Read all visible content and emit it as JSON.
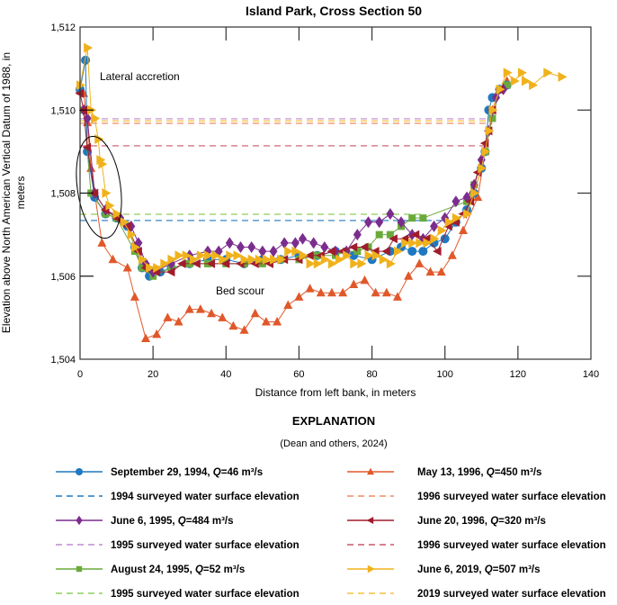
{
  "chart_data": {
    "type": "line",
    "title": "Island Park, Cross Section 50",
    "xlabel": "Distance from left bank, in meters",
    "ylabel": [
      "Elevation above North American Vertical Datum of 1988, in",
      "meters"
    ],
    "xlim": [
      0,
      140
    ],
    "ylim": [
      1504,
      1512
    ],
    "xticks": [
      0,
      20,
      40,
      60,
      80,
      100,
      120,
      140
    ],
    "yticks": [
      1504,
      1506,
      1508,
      1510,
      1512
    ],
    "ytick_labels": [
      "1,504",
      "1,506",
      "1,508",
      "1,510",
      "1,512"
    ],
    "grid": false,
    "annotations": [
      {
        "text": "Lateral accretion",
        "x": 5,
        "y": 1511.0
      },
      {
        "text": "Bed scour",
        "x": 37,
        "y": 1505.7
      }
    ],
    "legend": {
      "title": "EXPLANATION",
      "subtitle": "(Dean and others, 2024)",
      "placement": "bottom"
    },
    "series": [
      {
        "name": "September 29, 1994, Q=46 m³/s",
        "date": "September 29, 1994, ",
        "q": "Q",
        "qval": "=46 m³/s",
        "color": "#1f78c1",
        "marker": "circle",
        "x": [
          0,
          1.5,
          2,
          4,
          7,
          10,
          13,
          15,
          17,
          19,
          22,
          25,
          30,
          35,
          40,
          45,
          50,
          55,
          60,
          65,
          70,
          75,
          80,
          85,
          88,
          91,
          94,
          97,
          100,
          103,
          106,
          108,
          110,
          111,
          112,
          113,
          115,
          117
        ],
        "y": [
          1510.5,
          1511.2,
          1509.0,
          1507.9,
          1507.5,
          1507.4,
          1507.2,
          1506.7,
          1506.2,
          1506.0,
          1506.1,
          1506.2,
          1506.3,
          1506.4,
          1506.4,
          1506.3,
          1506.4,
          1506.4,
          1506.5,
          1506.5,
          1506.6,
          1506.5,
          1506.4,
          1506.6,
          1506.7,
          1506.6,
          1506.6,
          1506.8,
          1506.9,
          1507.3,
          1507.6,
          1508.0,
          1508.6,
          1509.0,
          1510.0,
          1510.3,
          1510.5,
          1510.6
        ]
      },
      {
        "name": "1994 surveyed water surface elevation",
        "color": "#1f78c1",
        "dashed": true,
        "x": [
          0,
          100.5
        ],
        "y": [
          1507.34,
          1507.34
        ]
      },
      {
        "name": "June 6, 1995, Q=484 m³/s",
        "date": "June 6, 1995, ",
        "q": "Q",
        "qval": "=484 m³/s",
        "color": "#7b2d8e",
        "marker": "diamond",
        "x": [
          1,
          2,
          4,
          7,
          11,
          14,
          16,
          18,
          20,
          25,
          30,
          35,
          38,
          41,
          44,
          47,
          50,
          53,
          56,
          59,
          61,
          64,
          67,
          70,
          73,
          76,
          79,
          82,
          85,
          88,
          91,
          94,
          97,
          100,
          103,
          106,
          108,
          110,
          112,
          114,
          116
        ],
        "y": [
          1510.0,
          1509.8,
          1508.0,
          1507.6,
          1507.4,
          1507.2,
          1506.8,
          1506.3,
          1506.1,
          1506.3,
          1506.5,
          1506.6,
          1506.6,
          1506.8,
          1506.7,
          1506.7,
          1506.6,
          1506.6,
          1506.8,
          1506.8,
          1506.9,
          1506.8,
          1506.7,
          1506.6,
          1506.6,
          1507.0,
          1507.3,
          1507.3,
          1507.5,
          1507.3,
          1507.0,
          1506.9,
          1507.2,
          1507.4,
          1507.8,
          1507.9,
          1508.2,
          1508.8,
          1509.5,
          1510.3,
          1510.5
        ]
      },
      {
        "name": "1995 surveyed water surface elevation",
        "color": "#c08ad0",
        "dashed": true,
        "x": [
          0,
          113
        ],
        "y": [
          1509.79,
          1509.79
        ]
      },
      {
        "name": "August 24, 1995, Q=52 m³/s",
        "date": "August 24, 1995, ",
        "q": "Q",
        "qval": "=52 m³/s",
        "color": "#6aaa3a",
        "marker": "square",
        "x": [
          1,
          3,
          7,
          10,
          15,
          17,
          20,
          25,
          30,
          35,
          40,
          45,
          50,
          55,
          60,
          65,
          70,
          73,
          76,
          79,
          82,
          85,
          88,
          91,
          94,
          106,
          108,
          111,
          113,
          115,
          117
        ],
        "y": [
          1510.0,
          1508.0,
          1507.5,
          1507.4,
          1506.6,
          1506.2,
          1506.0,
          1506.2,
          1506.3,
          1506.3,
          1506.3,
          1506.3,
          1506.3,
          1506.4,
          1506.4,
          1506.5,
          1506.5,
          1506.6,
          1506.6,
          1506.7,
          1507.0,
          1507.0,
          1507.2,
          1507.4,
          1507.4,
          1507.8,
          1508.2,
          1509.0,
          1509.8,
          1510.5,
          1510.6
        ]
      },
      {
        "name": "1995 surveyed water surface elevation",
        "color": "#8fcf5a",
        "dashed": true,
        "x": [
          0,
          94.7
        ],
        "y": [
          1507.49,
          1507.49
        ]
      },
      {
        "name": "May 13, 1996, Q=450 m³/s",
        "date": "May 13, 1996, ",
        "q": "Q",
        "qval": "=450 m³/s",
        "color": "#e0582a",
        "marker": "triangle-up",
        "x": [
          0,
          1,
          2,
          3,
          6,
          9,
          13,
          15,
          18,
          21,
          24,
          27,
          30,
          33,
          36,
          39,
          42,
          45,
          48,
          51,
          54,
          57,
          60,
          63,
          66,
          69,
          72,
          75,
          78,
          81,
          84,
          87,
          90,
          93,
          96,
          99,
          102,
          105,
          109,
          111,
          113,
          115,
          117
        ],
        "y": [
          1510.5,
          1510.4,
          1509.7,
          1508.6,
          1506.8,
          1506.4,
          1506.2,
          1505.5,
          1504.5,
          1504.6,
          1505.0,
          1504.9,
          1505.2,
          1505.2,
          1505.1,
          1505.0,
          1504.8,
          1504.7,
          1505.1,
          1504.9,
          1504.9,
          1505.3,
          1505.5,
          1505.7,
          1505.6,
          1505.6,
          1505.6,
          1505.8,
          1505.9,
          1505.6,
          1505.6,
          1505.5,
          1506.0,
          1506.3,
          1506.1,
          1506.1,
          1506.5,
          1507.1,
          1507.9,
          1509.0,
          1510.0,
          1510.5,
          1510.7
        ]
      },
      {
        "name": "1996 surveyed water surface elevation",
        "color": "#f08a60",
        "dashed": true,
        "x": [
          0,
          113
        ],
        "y": [
          1509.68,
          1509.68
        ]
      },
      {
        "name": "June 20, 1996, Q=320 m³/s",
        "date": "June 20, 1996, ",
        "q": "Q",
        "qval": "=320 m³/s",
        "color": "#a01c2c",
        "marker": "triangle-left",
        "x": [
          0,
          1,
          2,
          4,
          7,
          10,
          13,
          16,
          18,
          21,
          25,
          28,
          32,
          36,
          40,
          44,
          48,
          52,
          56,
          60,
          63,
          66,
          69,
          72,
          75,
          78,
          81,
          84,
          86,
          89,
          92,
          95,
          98,
          101,
          103,
          105,
          107,
          109,
          111,
          112,
          113,
          115
        ],
        "y": [
          1510.4,
          1510.0,
          1509.1,
          1508.0,
          1507.6,
          1507.4,
          1507.2,
          1506.6,
          1506.2,
          1506.1,
          1506.1,
          1506.3,
          1506.3,
          1506.3,
          1506.3,
          1506.3,
          1506.3,
          1506.3,
          1506.4,
          1506.4,
          1506.5,
          1506.5,
          1506.6,
          1506.6,
          1506.7,
          1506.7,
          1506.6,
          1506.6,
          1506.9,
          1506.9,
          1507.0,
          1506.9,
          1506.6,
          1507.2,
          1507.3,
          1507.5,
          1507.8,
          1508.5,
          1509.2,
          1509.5,
          1510.0,
          1510.5
        ]
      },
      {
        "name": "1996 surveyed water surface elevation",
        "color": "#c9566a",
        "dashed": true,
        "x": [
          0,
          112
        ],
        "y": [
          1509.14,
          1509.14
        ]
      },
      {
        "name": "June 6, 2019, Q=507 m³/s",
        "date": "June 6, 2019, ",
        "q": "Q",
        "qval": "=507 m³/s",
        "color": "#f0b21c",
        "marker": "triangle-right",
        "x": [
          0,
          2,
          3,
          4,
          5,
          5.5,
          6,
          7,
          8,
          10,
          12,
          14,
          15,
          17,
          19,
          21,
          23,
          25,
          27,
          29,
          31,
          33,
          35,
          37,
          39,
          41,
          43,
          45,
          47,
          49,
          51,
          53,
          55,
          57,
          59,
          61,
          63,
          65,
          67,
          69,
          71,
          73,
          75,
          77,
          79,
          81,
          83,
          85,
          87,
          89,
          91,
          93,
          95,
          97,
          99,
          101,
          103,
          106,
          108,
          110,
          111,
          112,
          113,
          115,
          117,
          119,
          121,
          122,
          124,
          128,
          132
        ],
        "y": [
          1510.6,
          1511.5,
          1510.0,
          1509.8,
          1509.3,
          1508.8,
          1508.7,
          1508.0,
          1507.7,
          1507.5,
          1507.3,
          1507.0,
          1506.7,
          1506.4,
          1506.2,
          1506.2,
          1506.3,
          1506.4,
          1506.5,
          1506.5,
          1506.4,
          1506.5,
          1506.5,
          1506.5,
          1506.4,
          1506.5,
          1506.5,
          1506.4,
          1506.4,
          1506.4,
          1506.4,
          1506.4,
          1506.4,
          1506.6,
          1506.6,
          1506.5,
          1506.3,
          1506.3,
          1506.4,
          1506.3,
          1506.4,
          1506.5,
          1506.3,
          1506.3,
          1506.5,
          1506.5,
          1506.4,
          1506.3,
          1506.6,
          1506.8,
          1506.8,
          1506.8,
          1506.8,
          1506.9,
          1507.1,
          1507.3,
          1507.4,
          1507.5,
          1508.0,
          1508.6,
          1509.0,
          1509.5,
          1510.0,
          1510.5,
          1510.9,
          1510.7,
          1510.9,
          1510.7,
          1510.6,
          1510.9,
          1510.8
        ]
      },
      {
        "name": "2019 surveyed water surface elevation",
        "color": "#f5c040",
        "dashed": true,
        "x": [
          0,
          113
        ],
        "y": [
          1509.74,
          1509.74
        ]
      }
    ]
  }
}
